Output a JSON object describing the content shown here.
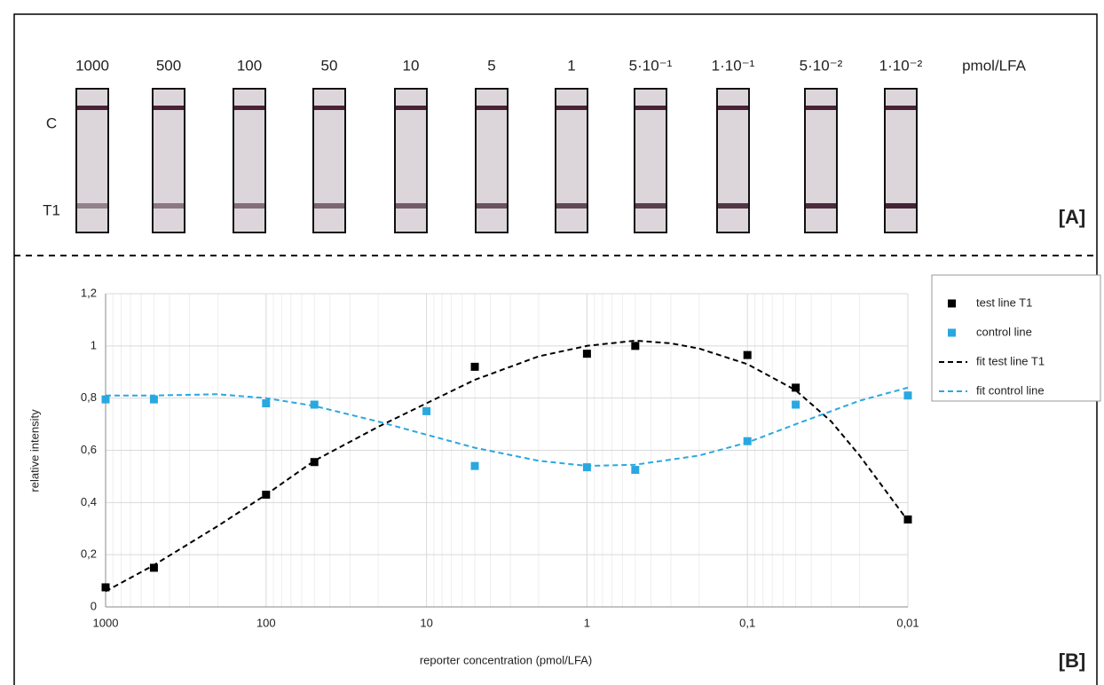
{
  "panel_a": {
    "concentrations": [
      "1000",
      "500",
      "100",
      "50",
      "10",
      "5",
      "1",
      "5·10⁻¹",
      "1·10⁻¹",
      "5·10⁻²",
      "1·10⁻²"
    ],
    "unit": "pmol/LFA",
    "row_labels": [
      "C",
      "T1"
    ],
    "panel_label": "[A]"
  },
  "chart_data": {
    "type": "scatter",
    "panel_label": "[B]",
    "x_label": "reporter concentration (pmol/LFA)",
    "y_label": "relative intensity",
    "xlog": true,
    "xlim": [
      1000,
      0.01
    ],
    "xticks": [
      1000,
      100,
      10,
      1,
      {
        "value": 0.1,
        "label": "0,1"
      },
      {
        "value": 0.01,
        "label": "0,01"
      }
    ],
    "xminorticks": [
      900,
      800,
      700,
      600,
      500,
      400,
      300,
      200,
      90,
      80,
      70,
      60,
      50,
      40,
      30,
      20,
      9,
      8,
      7,
      6,
      5,
      4,
      3,
      2,
      0.9,
      0.8,
      0.7,
      0.6,
      0.5,
      0.4,
      0.3,
      0.2,
      0.09,
      0.08,
      0.07,
      0.06,
      0.05,
      0.04,
      0.03,
      0.02
    ],
    "ylim": [
      0,
      1.2
    ],
    "yticks": [
      0,
      {
        "value": 0.2,
        "label": "0,2"
      },
      {
        "value": 0.4,
        "label": "0,4"
      },
      {
        "value": 0.6,
        "label": "0,6"
      },
      {
        "value": 0.8,
        "label": "0,8"
      },
      1,
      {
        "value": 1.2,
        "label": "1,2"
      }
    ],
    "grid": true,
    "legend": "right",
    "series": [
      {
        "name": "test line T1",
        "color": "#000000",
        "kind": "marker",
        "x": [
          1000,
          500,
          100,
          50,
          10,
          5,
          1,
          0.5,
          0.1,
          0.05,
          0.01
        ],
        "values": [
          0.075,
          0.15,
          0.43,
          0.555,
          null,
          0.92,
          0.97,
          1.0,
          0.965,
          0.84,
          0.335
        ]
      },
      {
        "name": "control line",
        "color": "#29a8e0",
        "kind": "marker",
        "x": [
          1000,
          500,
          100,
          50,
          10,
          5,
          1,
          0.5,
          0.1,
          0.05,
          0.01
        ],
        "values": [
          0.795,
          0.795,
          0.78,
          0.775,
          0.75,
          0.54,
          0.535,
          0.525,
          0.635,
          0.775,
          0.81
        ]
      },
      {
        "name": "fit test line T1",
        "color": "#000000",
        "kind": "dashed-line",
        "x": [
          1000,
          500,
          200,
          100,
          50,
          20,
          10,
          5,
          2,
          1,
          0.5,
          0.3,
          0.2,
          0.1,
          0.05,
          0.03,
          0.02,
          0.01
        ],
        "values": [
          0.06,
          0.16,
          0.31,
          0.43,
          0.56,
          0.69,
          0.78,
          0.87,
          0.96,
          1.0,
          1.02,
          1.01,
          0.99,
          0.93,
          0.83,
          0.71,
          0.58,
          0.33
        ]
      },
      {
        "name": "fit control line",
        "color": "#29a8e0",
        "kind": "dashed-line",
        "x": [
          1000,
          500,
          200,
          100,
          50,
          20,
          10,
          5,
          2,
          1,
          0.5,
          0.2,
          0.1,
          0.05,
          0.02,
          0.01
        ],
        "values": [
          0.81,
          0.81,
          0.815,
          0.8,
          0.77,
          0.71,
          0.66,
          0.61,
          0.56,
          0.54,
          0.545,
          0.58,
          0.63,
          0.7,
          0.79,
          0.84
        ]
      }
    ]
  }
}
